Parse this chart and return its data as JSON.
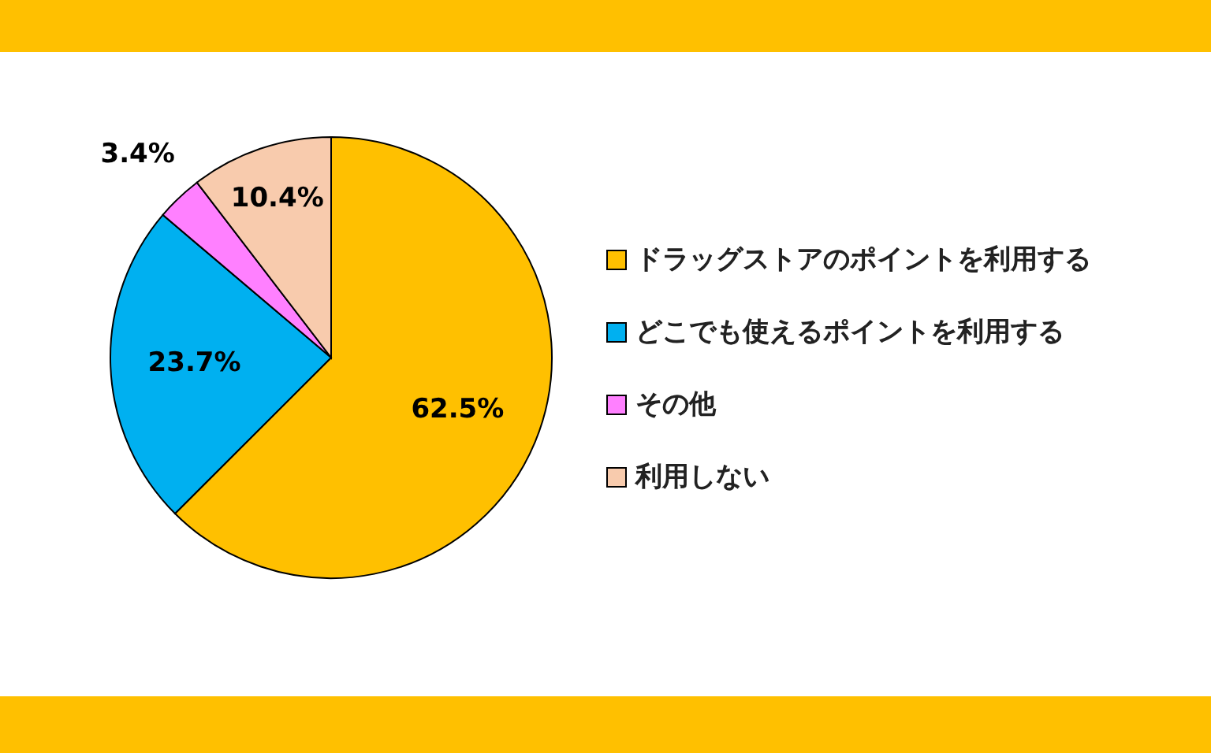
{
  "chart_data": {
    "type": "pie",
    "categories": [
      "ドラッグストアのポイントを利用する",
      "どこでも使えるポイントを利用する",
      "その他",
      "利用しない"
    ],
    "values": [
      62.5,
      23.7,
      3.4,
      10.4
    ],
    "colors": [
      "#ffc000",
      "#00b0f0",
      "#ff80ff",
      "#f8cbad"
    ],
    "value_labels": [
      "62.5%",
      "23.7%",
      "3.4%",
      "10.4%"
    ],
    "legend": "right"
  }
}
